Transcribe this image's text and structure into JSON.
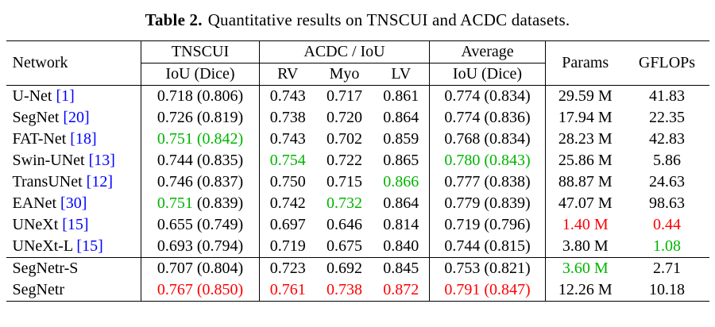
{
  "caption": {
    "label": "Table 2.",
    "text": "Quantitative results on TNSCUI and ACDC datasets."
  },
  "colors": {
    "black": "#000000",
    "green": "#00b400",
    "red": "#fe0000",
    "citation": "#0000ff"
  },
  "headers": {
    "network": "Network",
    "tnscui": "TNSCUI",
    "acdc": "ACDC / IoU",
    "average": "Average",
    "params": "Params",
    "gflops": "GFLOPs",
    "iou_dice": "IoU (Dice)",
    "rv": "RV",
    "myo": "Myo",
    "lv": "LV"
  },
  "rows": [
    {
      "network": "U-Net",
      "cite": "[1]",
      "section": false,
      "tnscui": [
        {
          "t": "0.718",
          "c": "black"
        },
        {
          "t": "(0.806)",
          "c": "black"
        }
      ],
      "acdc": [
        {
          "t": "0.743",
          "c": "black"
        },
        {
          "t": "0.717",
          "c": "black"
        },
        {
          "t": "0.861",
          "c": "black"
        }
      ],
      "avg": [
        {
          "t": "0.774",
          "c": "black"
        },
        {
          "t": "(0.834)",
          "c": "black"
        }
      ],
      "params": {
        "t": "29.59 M",
        "c": "black"
      },
      "gflops": {
        "t": "41.83",
        "c": "black"
      }
    },
    {
      "network": "SegNet",
      "cite": "[20]",
      "section": false,
      "tnscui": [
        {
          "t": "0.726",
          "c": "black"
        },
        {
          "t": "(0.819)",
          "c": "black"
        }
      ],
      "acdc": [
        {
          "t": "0.738",
          "c": "black"
        },
        {
          "t": "0.720",
          "c": "black"
        },
        {
          "t": "0.864",
          "c": "black"
        }
      ],
      "avg": [
        {
          "t": "0.774",
          "c": "black"
        },
        {
          "t": "(0.836)",
          "c": "black"
        }
      ],
      "params": {
        "t": "17.94 M",
        "c": "black"
      },
      "gflops": {
        "t": "22.35",
        "c": "black"
      }
    },
    {
      "network": "FAT-Net",
      "cite": "[18]",
      "section": false,
      "tnscui": [
        {
          "t": "0.751",
          "c": "green"
        },
        {
          "t": "(0.842)",
          "c": "green"
        }
      ],
      "acdc": [
        {
          "t": "0.743",
          "c": "black"
        },
        {
          "t": "0.702",
          "c": "black"
        },
        {
          "t": "0.859",
          "c": "black"
        }
      ],
      "avg": [
        {
          "t": "0.768",
          "c": "black"
        },
        {
          "t": "(0.834)",
          "c": "black"
        }
      ],
      "params": {
        "t": "28.23 M",
        "c": "black"
      },
      "gflops": {
        "t": "42.83",
        "c": "black"
      }
    },
    {
      "network": "Swin-UNet",
      "cite": "[13]",
      "section": false,
      "tnscui": [
        {
          "t": "0.744",
          "c": "black"
        },
        {
          "t": "(0.835)",
          "c": "black"
        }
      ],
      "acdc": [
        {
          "t": "0.754",
          "c": "green"
        },
        {
          "t": "0.722",
          "c": "black"
        },
        {
          "t": "0.865",
          "c": "black"
        }
      ],
      "avg": [
        {
          "t": "0.780",
          "c": "green"
        },
        {
          "t": "(0.843)",
          "c": "green"
        }
      ],
      "params": {
        "t": "25.86 M",
        "c": "black"
      },
      "gflops": {
        "t": "5.86",
        "c": "black"
      }
    },
    {
      "network": "TransUNet",
      "cite": "[12]",
      "section": false,
      "tnscui": [
        {
          "t": "0.746",
          "c": "black"
        },
        {
          "t": "(0.837)",
          "c": "black"
        }
      ],
      "acdc": [
        {
          "t": "0.750",
          "c": "black"
        },
        {
          "t": "0.715",
          "c": "black"
        },
        {
          "t": "0.866",
          "c": "green"
        }
      ],
      "avg": [
        {
          "t": "0.777",
          "c": "black"
        },
        {
          "t": "(0.838)",
          "c": "black"
        }
      ],
      "params": {
        "t": "88.87 M",
        "c": "black"
      },
      "gflops": {
        "t": "24.63",
        "c": "black"
      }
    },
    {
      "network": "EANet",
      "cite": "[30]",
      "section": false,
      "tnscui": [
        {
          "t": "0.751",
          "c": "green"
        },
        {
          "t": "(0.839)",
          "c": "black"
        }
      ],
      "acdc": [
        {
          "t": "0.742",
          "c": "black"
        },
        {
          "t": "0.732",
          "c": "green"
        },
        {
          "t": "0.864",
          "c": "black"
        }
      ],
      "avg": [
        {
          "t": "0.779",
          "c": "black"
        },
        {
          "t": "(0.839)",
          "c": "black"
        }
      ],
      "params": {
        "t": "47.07 M",
        "c": "black"
      },
      "gflops": {
        "t": "98.63",
        "c": "black"
      }
    },
    {
      "network": "UNeXt",
      "cite": "[15]",
      "section": false,
      "tnscui": [
        {
          "t": "0.655",
          "c": "black"
        },
        {
          "t": "(0.749)",
          "c": "black"
        }
      ],
      "acdc": [
        {
          "t": "0.697",
          "c": "black"
        },
        {
          "t": "0.646",
          "c": "black"
        },
        {
          "t": "0.814",
          "c": "black"
        }
      ],
      "avg": [
        {
          "t": "0.719",
          "c": "black"
        },
        {
          "t": "(0.796)",
          "c": "black"
        }
      ],
      "params": {
        "t": "1.40 M",
        "c": "red"
      },
      "gflops": {
        "t": "0.44",
        "c": "red"
      }
    },
    {
      "network": "UNeXt-L",
      "cite": "[15]",
      "section": false,
      "tnscui": [
        {
          "t": "0.693",
          "c": "black"
        },
        {
          "t": "(0.794)",
          "c": "black"
        }
      ],
      "acdc": [
        {
          "t": "0.719",
          "c": "black"
        },
        {
          "t": "0.675",
          "c": "black"
        },
        {
          "t": "0.840",
          "c": "black"
        }
      ],
      "avg": [
        {
          "t": "0.744",
          "c": "black"
        },
        {
          "t": "(0.815)",
          "c": "black"
        }
      ],
      "params": {
        "t": "3.80 M",
        "c": "black"
      },
      "gflops": {
        "t": "1.08",
        "c": "green"
      }
    },
    {
      "network": "SegNetr-S",
      "cite": "",
      "section": true,
      "tnscui": [
        {
          "t": "0.707",
          "c": "black"
        },
        {
          "t": "(0.804)",
          "c": "black"
        }
      ],
      "acdc": [
        {
          "t": "0.723",
          "c": "black"
        },
        {
          "t": "0.692",
          "c": "black"
        },
        {
          "t": "0.845",
          "c": "black"
        }
      ],
      "avg": [
        {
          "t": "0.753",
          "c": "black"
        },
        {
          "t": "(0.821)",
          "c": "black"
        }
      ],
      "params": {
        "t": "3.60 M",
        "c": "green"
      },
      "gflops": {
        "t": "2.71",
        "c": "black"
      }
    },
    {
      "network": "SegNetr",
      "cite": "",
      "section": false,
      "tnscui": [
        {
          "t": "0.767",
          "c": "red"
        },
        {
          "t": "(0.850)",
          "c": "red"
        }
      ],
      "acdc": [
        {
          "t": "0.761",
          "c": "red"
        },
        {
          "t": "0.738",
          "c": "red"
        },
        {
          "t": "0.872",
          "c": "red"
        }
      ],
      "avg": [
        {
          "t": "0.791",
          "c": "red"
        },
        {
          "t": "(0.847)",
          "c": "red"
        }
      ],
      "params": {
        "t": "12.26 M",
        "c": "black"
      },
      "gflops": {
        "t": "10.18",
        "c": "black"
      }
    }
  ]
}
